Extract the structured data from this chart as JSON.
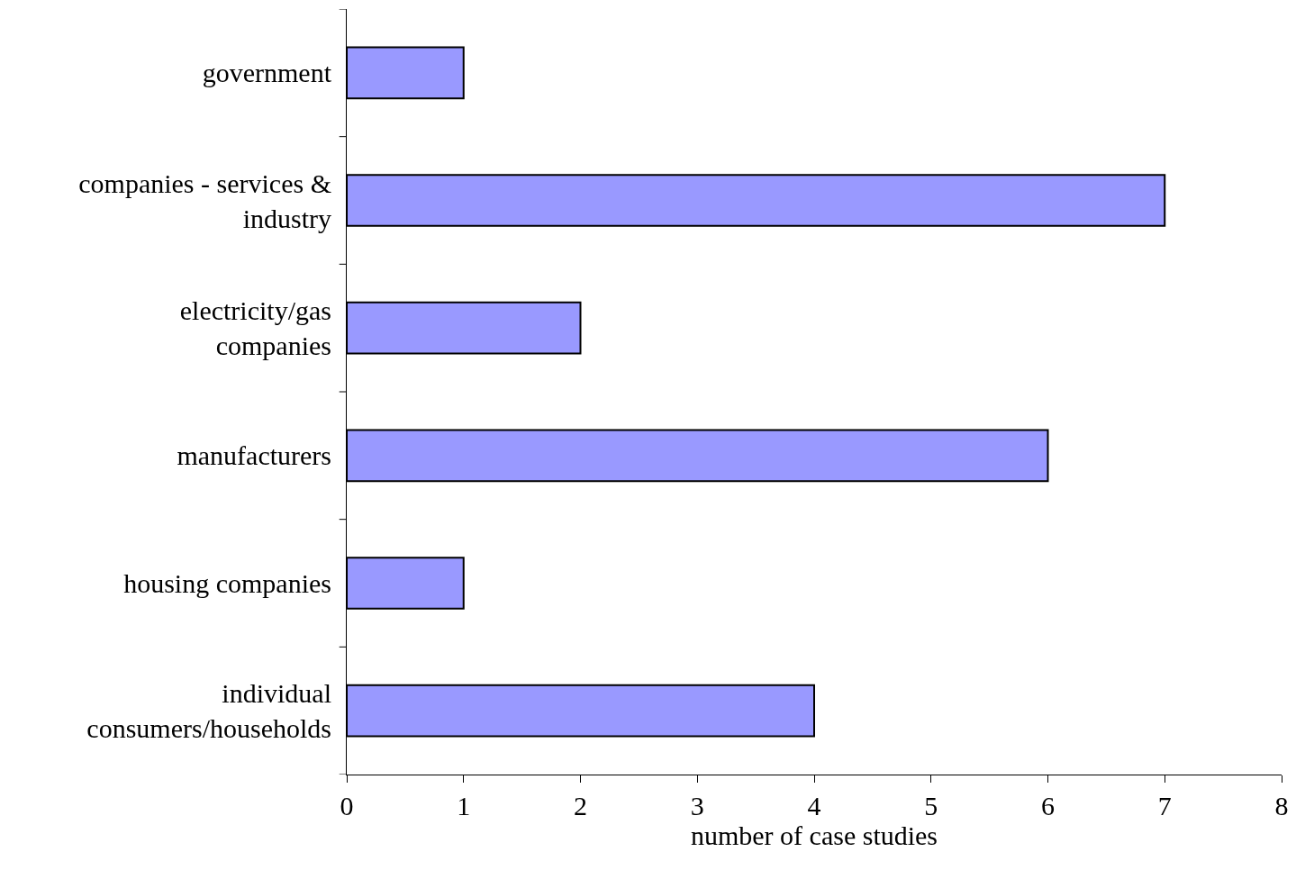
{
  "chart_data": {
    "type": "bar",
    "orientation": "horizontal",
    "xlabel": "number of case studies",
    "categories": [
      "government",
      "companies - services & industry",
      "electricity/gas companies",
      "manufacturers",
      "housing companies",
      "individual consumers/households"
    ],
    "values": [
      1,
      7,
      2,
      6,
      1,
      4
    ],
    "color": "#9999ff",
    "xlim": [
      0,
      8
    ],
    "xticks": [
      0,
      1,
      2,
      3,
      4,
      5,
      6,
      7,
      8
    ],
    "grid": false,
    "legend": false
  }
}
